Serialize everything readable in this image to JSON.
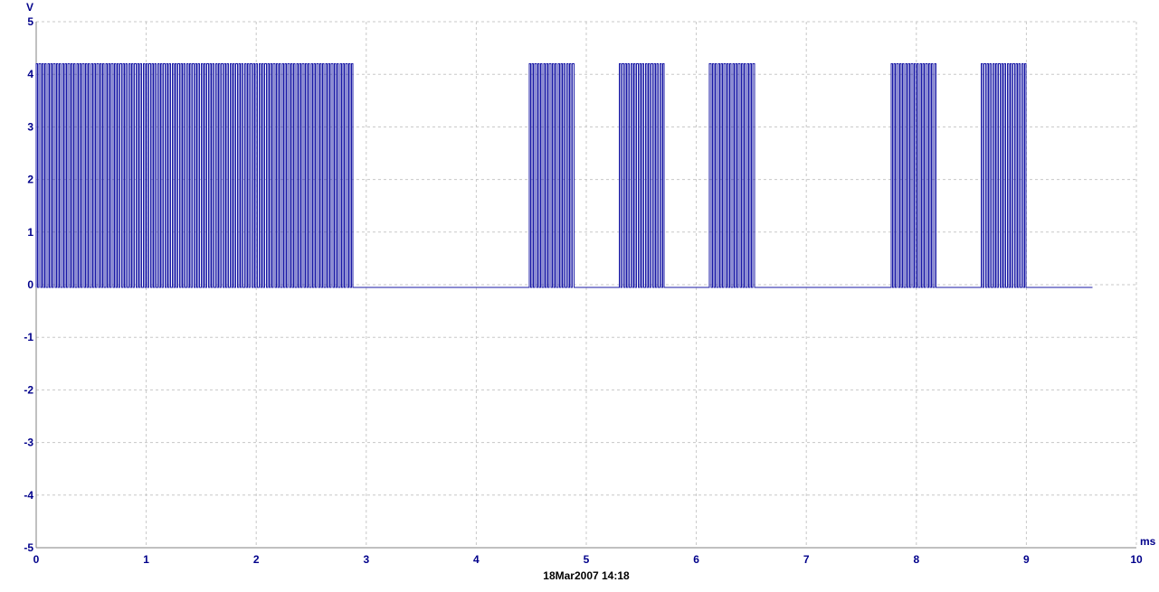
{
  "chart_data": {
    "type": "line",
    "title": "",
    "xlabel": "",
    "ylabel": "",
    "x_unit": "ms",
    "y_unit": "V",
    "xlim": [
      0,
      10
    ],
    "ylim": [
      -5,
      5
    ],
    "x_ticks": [
      "0",
      "1",
      "2",
      "3",
      "4",
      "5",
      "6",
      "7",
      "8",
      "9",
      "10"
    ],
    "y_ticks": [
      "5",
      "4",
      "3",
      "2",
      "1",
      "0",
      "-1",
      "-2",
      "-3",
      "-4",
      "-5"
    ],
    "grid": true,
    "signal_end_ms": 9.6,
    "high_level_v": 4.2,
    "low_level_v": -0.05,
    "carrier_period_ms": 0.0263,
    "bursts_ms": [
      [
        0.0,
        2.88
      ],
      [
        4.48,
        4.9
      ],
      [
        5.3,
        5.72
      ],
      [
        6.12,
        6.54
      ],
      [
        7.77,
        8.18
      ],
      [
        8.59,
        9.0
      ]
    ],
    "colors": {
      "trace": "#1a1aa6",
      "axis_text": "#00008b",
      "grid": "#c8c8c8",
      "axis_line": "#808080"
    }
  },
  "timestamp": "18Mar2007  14:18"
}
